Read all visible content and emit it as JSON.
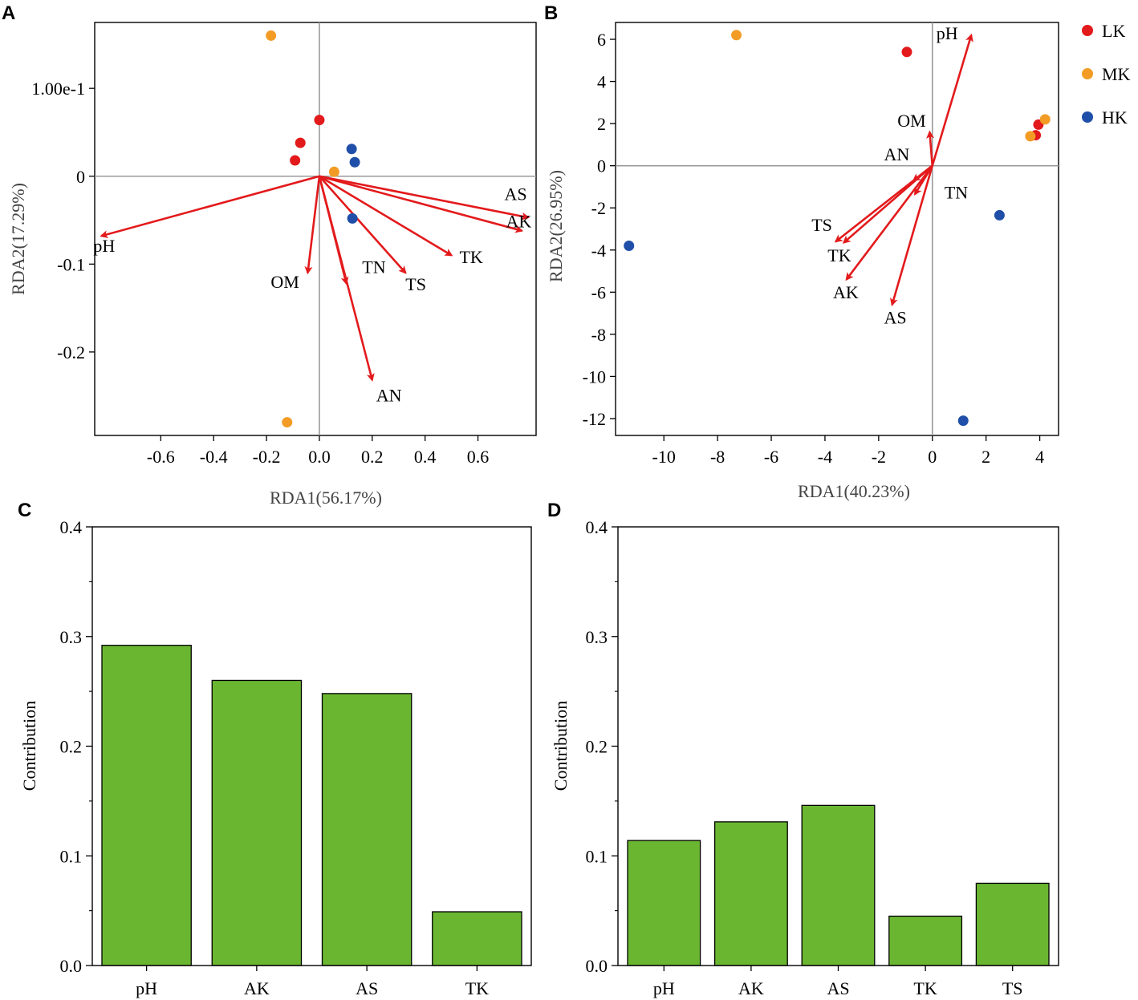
{
  "colors": {
    "LK": "#e31a1c",
    "MK": "#f39c25",
    "HK": "#1f4fa8",
    "arrow": "#e31a1c",
    "bar": "#6ab631",
    "zero_line": "#999999"
  },
  "legend": [
    {
      "group": "LK",
      "label": "LK"
    },
    {
      "group": "MK",
      "label": "MK"
    },
    {
      "group": "HK",
      "label": "HK"
    }
  ],
  "chart_data": [
    {
      "panel": "A",
      "type": "scatter",
      "title": "",
      "xlabel": "RDA1(56.17%)",
      "ylabel": "RDA2(17.29%)",
      "xlim": [
        -0.85,
        0.82
      ],
      "ylim": [
        -0.295,
        0.175
      ],
      "xticks": [
        -0.6,
        -0.4,
        -0.2,
        0.0,
        0.2,
        0.4,
        0.6
      ],
      "xtick_labels": [
        "-0.6",
        "-0.4",
        "-0.2",
        "0.0",
        "0.2",
        "0.4",
        "0.6"
      ],
      "yticks": [
        0.1,
        0,
        -0.1,
        -0.2
      ],
      "ytick_labels": [
        "1.00e-1",
        "0",
        "-0.1",
        "-0.2"
      ],
      "points": [
        {
          "group": "LK",
          "x": 0.0,
          "y": 0.064
        },
        {
          "group": "LK",
          "x": -0.072,
          "y": 0.038
        },
        {
          "group": "LK",
          "x": -0.092,
          "y": 0.018
        },
        {
          "group": "MK",
          "x": -0.183,
          "y": 0.16
        },
        {
          "group": "MK",
          "x": 0.056,
          "y": 0.005
        },
        {
          "group": "MK",
          "x": -0.122,
          "y": -0.28
        },
        {
          "group": "HK",
          "x": 0.122,
          "y": 0.031
        },
        {
          "group": "HK",
          "x": 0.134,
          "y": 0.016
        },
        {
          "group": "HK",
          "x": 0.125,
          "y": -0.048
        }
      ],
      "arrows": [
        {
          "label": "pH",
          "x": -0.825,
          "y": -0.068,
          "label_dx": -0.03,
          "label_dy": -0.018
        },
        {
          "label": "AS",
          "x": 0.79,
          "y": -0.047,
          "label_dx": -0.09,
          "label_dy": 0.02
        },
        {
          "label": "AK",
          "x": 0.766,
          "y": -0.062,
          "label_dx": -0.06,
          "label_dy": 0.004
        },
        {
          "label": "TK",
          "x": 0.5,
          "y": -0.09,
          "label_dx": 0.03,
          "label_dy": -0.009
        },
        {
          "label": "TS",
          "x": 0.326,
          "y": -0.11,
          "label_dx": 0.0,
          "label_dy": -0.02
        },
        {
          "label": "TN",
          "x": 0.102,
          "y": -0.122,
          "label_dx": 0.06,
          "label_dy": 0.012
        },
        {
          "label": "OM",
          "x": -0.044,
          "y": -0.11,
          "label_dx": -0.14,
          "label_dy": -0.017
        },
        {
          "label": "AN",
          "x": 0.2,
          "y": -0.232,
          "label_dx": 0.015,
          "label_dy": -0.024
        }
      ]
    },
    {
      "panel": "B",
      "type": "scatter",
      "title": "",
      "xlabel": "RDA1(40.23%)",
      "ylabel": "RDA2(26.95%)",
      "xlim": [
        -11.8,
        4.7
      ],
      "ylim": [
        -12.8,
        6.8
      ],
      "xticks": [
        -10,
        -8,
        -6,
        -4,
        -2,
        0,
        2,
        4
      ],
      "xtick_labels": [
        "-10",
        "-8",
        "-6",
        "-4",
        "-2",
        "0",
        "2",
        "4"
      ],
      "yticks": [
        6,
        4,
        2,
        0,
        -2,
        -4,
        -6,
        -8,
        -10,
        -12
      ],
      "ytick_labels": [
        "6",
        "4",
        "2",
        "0",
        "-2",
        "-4",
        "-6",
        "-8",
        "-10",
        "-12"
      ],
      "points": [
        {
          "group": "LK",
          "x": -0.95,
          "y": 5.4
        },
        {
          "group": "LK",
          "x": 3.95,
          "y": 1.95
        },
        {
          "group": "LK",
          "x": 3.85,
          "y": 1.45
        },
        {
          "group": "MK",
          "x": -7.3,
          "y": 6.2
        },
        {
          "group": "MK",
          "x": 4.2,
          "y": 2.2
        },
        {
          "group": "MK",
          "x": 3.65,
          "y": 1.4
        },
        {
          "group": "HK",
          "x": -11.3,
          "y": -3.8
        },
        {
          "group": "HK",
          "x": 2.5,
          "y": -2.35
        },
        {
          "group": "HK",
          "x": 1.15,
          "y": -12.1
        }
      ],
      "arrows": [
        {
          "label": "pH",
          "x": 1.45,
          "y": 6.2,
          "label_dx": -1.3,
          "label_dy": -0.2
        },
        {
          "label": "OM",
          "x": -0.1,
          "y": 1.6,
          "label_dx": -1.2,
          "label_dy": 0.25
        },
        {
          "label": "AN",
          "x": -0.7,
          "y": -0.7,
          "label_dx": -1.1,
          "label_dy": 0.95
        },
        {
          "label": "TN",
          "x": -0.65,
          "y": -1.35,
          "label_dx": 1.1,
          "label_dy": -0.2
        },
        {
          "label": "TS",
          "x": -3.6,
          "y": -3.6,
          "label_dx": -0.9,
          "label_dy": 0.5
        },
        {
          "label": "TK",
          "x": -3.3,
          "y": -3.65,
          "label_dx": -0.6,
          "label_dy": -0.9
        },
        {
          "label": "AK",
          "x": -3.2,
          "y": -5.4,
          "label_dx": -0.5,
          "label_dy": -0.9
        },
        {
          "label": "AS",
          "x": -1.5,
          "y": -6.6,
          "label_dx": -0.3,
          "label_dy": -0.9
        }
      ]
    },
    {
      "panel": "C",
      "type": "bar",
      "title": "",
      "xlabel": "",
      "ylabel": "Contribution",
      "ylim": [
        0.0,
        0.4
      ],
      "yticks": [
        0.0,
        0.1,
        0.2,
        0.3,
        0.4
      ],
      "ytick_labels": [
        "0.0",
        "0.1",
        "0.2",
        "0.3",
        "0.4"
      ],
      "categories": [
        "pH",
        "AK",
        "AS",
        "TK"
      ],
      "values": [
        0.292,
        0.26,
        0.248,
        0.049
      ]
    },
    {
      "panel": "D",
      "type": "bar",
      "title": "",
      "xlabel": "",
      "ylabel": "Contribution",
      "ylim": [
        0.0,
        0.4
      ],
      "yticks": [
        0.0,
        0.1,
        0.2,
        0.3,
        0.4
      ],
      "ytick_labels": [
        "0.0",
        "0.1",
        "0.2",
        "0.3",
        "0.4"
      ],
      "categories": [
        "pH",
        "AK",
        "AS",
        "TK",
        "TS"
      ],
      "values": [
        0.114,
        0.131,
        0.146,
        0.045,
        0.075
      ]
    }
  ]
}
